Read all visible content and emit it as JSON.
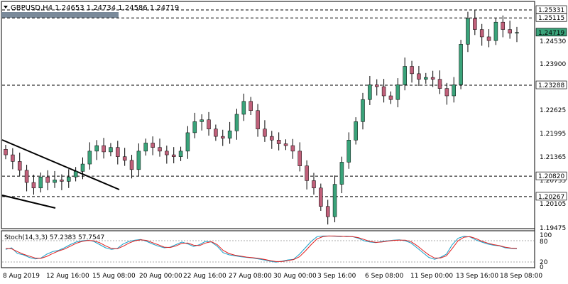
{
  "chart_title": {
    "symbol": "GBPUSD,H4",
    "ohlc": "1.24653 1.24734 1.24586 1.24719",
    "text": "GBPUSD,H4  1.24653 1.24734 1.24586 1.24719"
  },
  "indicator": {
    "label": "Stoch(14,3,3) 57.2383 57.7547",
    "levels": [
      "100",
      "80",
      "20",
      "0"
    ]
  },
  "price_axis": {
    "ticks": [
      "1.24530",
      "1.23900",
      "1.22625",
      "1.21995",
      "1.21365",
      "1.20735",
      "1.20105",
      "1.19475"
    ]
  },
  "time_axis": {
    "labels": [
      "8 Aug 2019",
      "12 Aug 16:00",
      "15 Aug 08:00",
      "20 Aug 00:00",
      "22 Aug 16:00",
      "27 Aug 08:00",
      "30 Aug 00:00",
      "3 Sep 16:00",
      "6 Sep 08:00",
      "11 Sep 00:00",
      "13 Sep 16:00",
      "18 Sep 08:00"
    ]
  },
  "levels": [
    {
      "value": "1.25331",
      "style": "dashed"
    },
    {
      "value": "1.25115",
      "style": "dashed"
    },
    {
      "value": "1.24719",
      "style": "current"
    },
    {
      "value": "1.23288",
      "style": "dashed"
    },
    {
      "value": "1.20820",
      "style": "dashed"
    },
    {
      "value": "1.20267",
      "style": "dashed"
    }
  ],
  "colors": {
    "bull": "#3aa37a",
    "bear": "#c0607a",
    "wick": "#000000",
    "stoch_main": "#1aa0c8",
    "stoch_signal": "#e02020",
    "current_price_box": "#3aa37a",
    "trendline": "#000000"
  },
  "chart_data": [
    {
      "type": "candlestick",
      "title": "GBPUSD,H4",
      "ylim": [
        1.19475,
        1.25331
      ],
      "x_labels": [
        "8 Aug 2019",
        "12 Aug 16:00",
        "15 Aug 08:00",
        "20 Aug 00:00",
        "22 Aug 16:00",
        "27 Aug 08:00",
        "30 Aug 00:00",
        "3 Sep 16:00",
        "6 Sep 08:00",
        "11 Sep 00:00",
        "13 Sep 16:00",
        "18 Sep 08:00"
      ],
      "close_path": [
        1.214,
        1.2122,
        1.2098,
        1.2065,
        1.205,
        1.208,
        1.2065,
        1.2072,
        1.2068,
        1.208,
        1.2095,
        1.2115,
        1.215,
        1.2165,
        1.2148,
        1.216,
        1.2135,
        1.2125,
        1.21,
        1.215,
        1.2172,
        1.216,
        1.215,
        1.214,
        1.2135,
        1.215,
        1.22,
        1.223,
        1.2235,
        1.221,
        1.219,
        1.2185,
        1.2205,
        1.225,
        1.2285,
        1.226,
        1.221,
        1.219,
        1.218,
        1.217,
        1.2165,
        1.215,
        1.211,
        1.207,
        1.205,
        1.2,
        1.1972,
        1.206,
        1.212,
        1.218,
        1.223,
        1.229,
        1.233,
        1.2325,
        1.23,
        1.229,
        1.233,
        1.238,
        1.236,
        1.2345,
        1.235,
        1.2345,
        1.232,
        1.23,
        1.233,
        1.244,
        1.251,
        1.248,
        1.246,
        1.245,
        1.25,
        1.248,
        1.247,
        1.2472
      ],
      "series": [
        {
          "name": "Stoch(14,3,3)",
          "last": 57.2383
        },
        {
          "name": "Signal",
          "last": 57.7547
        }
      ],
      "stoch_main": [
        55,
        60,
        42,
        38,
        30,
        25,
        28,
        40,
        48,
        52,
        60,
        70,
        78,
        82,
        84,
        80,
        70,
        60,
        55,
        58,
        72,
        80,
        84,
        86,
        80,
        72,
        65,
        60,
        62,
        70,
        78,
        72,
        64,
        70,
        80,
        78,
        65,
        45,
        38,
        35,
        32,
        30,
        28,
        25,
        22,
        18,
        15,
        18,
        22,
        24,
        40,
        60,
        80,
        95,
        97,
        97,
        96,
        95,
        96,
        95,
        90,
        82,
        78,
        76,
        80,
        82,
        84,
        85,
        82,
        75,
        60,
        45,
        30,
        24,
        30,
        40,
        70,
        90,
        96,
        94,
        85,
        78,
        72,
        68,
        66,
        60,
        58,
        57
      ],
      "stoch_signal": [
        58,
        57,
        48,
        40,
        34,
        28,
        27,
        33,
        42,
        50,
        56,
        65,
        74,
        80,
        83,
        82,
        76,
        66,
        58,
        57,
        65,
        75,
        82,
        85,
        83,
        76,
        69,
        62,
        61,
        66,
        74,
        75,
        68,
        67,
        75,
        79,
        70,
        52,
        42,
        37,
        34,
        31,
        29,
        27,
        24,
        20,
        17,
        17,
        20,
        23,
        32,
        50,
        70,
        88,
        95,
        97,
        97,
        96,
        95,
        95,
        92,
        86,
        80,
        77,
        78,
        81,
        83,
        84,
        84,
        79,
        67,
        52,
        38,
        28,
        28,
        35,
        58,
        82,
        93,
        95,
        89,
        81,
        75,
        70,
        67,
        62,
        59,
        58
      ]
    }
  ]
}
